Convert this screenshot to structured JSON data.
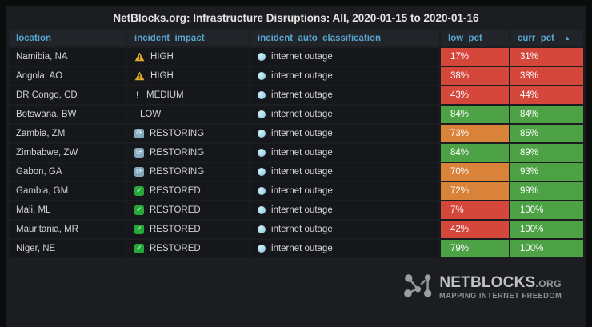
{
  "panel": {
    "title": "NetBlocks.org: Infrastructure Disruptions: All, 2020-01-15 to 2020-01-16"
  },
  "table": {
    "columns": [
      {
        "label": "location"
      },
      {
        "label": "incident_impact"
      },
      {
        "label": "incident_auto_classification"
      },
      {
        "label": "low_pct"
      },
      {
        "label": "curr_pct",
        "sort_icon": "▲",
        "sorted": "asc"
      }
    ],
    "classification_icon": "globe-icon",
    "rows": [
      {
        "location": "Namibia, NA",
        "impact": "HIGH",
        "impact_icon": "warning-triangle-icon",
        "classification": "internet outage",
        "low": "17%",
        "low_color": "red",
        "curr": "31%",
        "curr_color": "red"
      },
      {
        "location": "Angola, AO",
        "impact": "HIGH",
        "impact_icon": "warning-triangle-icon",
        "classification": "internet outage",
        "low": "38%",
        "low_color": "red",
        "curr": "38%",
        "curr_color": "red"
      },
      {
        "location": "DR Congo, CD",
        "impact": "MEDIUM",
        "impact_icon": "exclamation-icon",
        "classification": "internet outage",
        "low": "43%",
        "low_color": "red",
        "curr": "44%",
        "curr_color": "red"
      },
      {
        "location": "Botswana, BW",
        "impact": "LOW",
        "impact_icon": "none",
        "classification": "internet outage",
        "low": "84%",
        "low_color": "green",
        "curr": "84%",
        "curr_color": "green"
      },
      {
        "location": "Zambia, ZM",
        "impact": "RESTORING",
        "impact_icon": "restoring-icon",
        "classification": "internet outage",
        "low": "73%",
        "low_color": "orange",
        "curr": "85%",
        "curr_color": "green"
      },
      {
        "location": "Zimbabwe, ZW",
        "impact": "RESTORING",
        "impact_icon": "restoring-icon",
        "classification": "internet outage",
        "low": "84%",
        "low_color": "green",
        "curr": "89%",
        "curr_color": "green"
      },
      {
        "location": "Gabon, GA",
        "impact": "RESTORING",
        "impact_icon": "restoring-icon",
        "classification": "internet outage",
        "low": "70%",
        "low_color": "orange",
        "curr": "93%",
        "curr_color": "green"
      },
      {
        "location": "Gambia, GM",
        "impact": "RESTORED",
        "impact_icon": "restored-check-icon",
        "classification": "internet outage",
        "low": "72%",
        "low_color": "orange",
        "curr": "99%",
        "curr_color": "green"
      },
      {
        "location": "Mali, ML",
        "impact": "RESTORED",
        "impact_icon": "restored-check-icon",
        "classification": "internet outage",
        "low": "7%",
        "low_color": "red",
        "curr": "100%",
        "curr_color": "green"
      },
      {
        "location": "Mauritania, MR",
        "impact": "RESTORED",
        "impact_icon": "restored-check-icon",
        "classification": "internet outage",
        "low": "42%",
        "low_color": "red",
        "curr": "100%",
        "curr_color": "green"
      },
      {
        "location": "Niger, NE",
        "impact": "RESTORED",
        "impact_icon": "restored-check-icon",
        "classification": "internet outage",
        "low": "79%",
        "low_color": "green",
        "curr": "100%",
        "curr_color": "green"
      }
    ]
  },
  "colors": {
    "red": "#d5463b",
    "orange": "#d9823a",
    "green": "#4ca245",
    "header_text": "#58a6d1",
    "panel_bg": "#1b1d20"
  },
  "logo": {
    "brand": "NETBLOCKS",
    "tld": ".ORG",
    "tagline": "MAPPING INTERNET FREEDOM"
  }
}
